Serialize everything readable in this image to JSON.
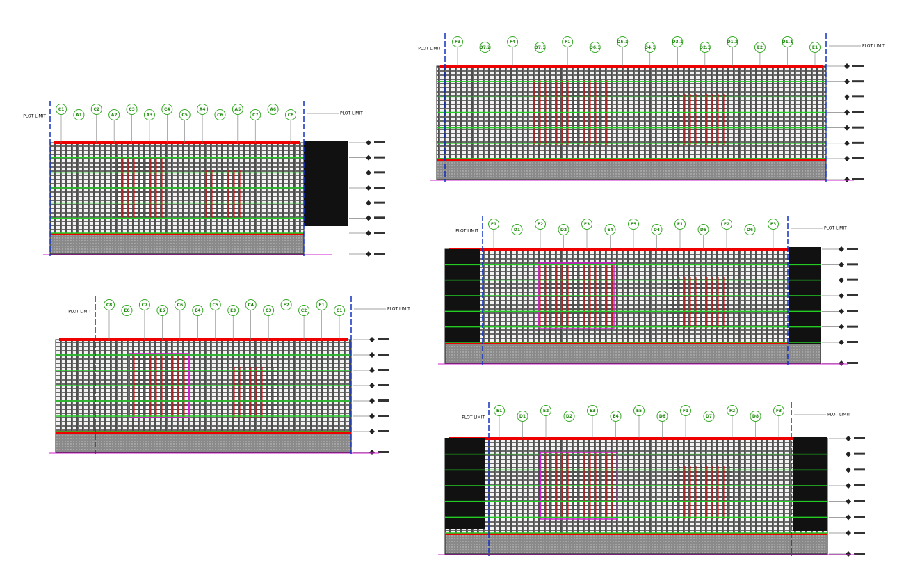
{
  "elevations": [
    {
      "plot_limit": "PLOT LIMIT",
      "grid_labels": [
        "C1",
        "A1",
        "C2",
        "A2",
        "C3",
        "A3",
        "C4",
        "C5",
        "A4",
        "C6",
        "A5",
        "C7",
        "A6",
        "C8"
      ]
    },
    {
      "plot_limit": "PLOT LIMIT",
      "grid_labels": [
        "F3",
        "D7.2",
        "F4",
        "D7.1",
        "F1",
        "D6.1",
        "D5.1",
        "D4.1",
        "D3.1",
        "D2.1",
        "D1.2",
        "E2",
        "D1.1",
        "E1"
      ]
    },
    {
      "plot_limit": "PLOT LIMIT",
      "grid_labels": [
        "C8",
        "E6",
        "C7",
        "E5",
        "C6",
        "E4",
        "C5",
        "E3",
        "C4",
        "C3",
        "E2",
        "C2",
        "E1",
        "C1"
      ]
    },
    {
      "plot_limit": "PLOT LIMIT",
      "grid_labels": [
        "E1",
        "D1",
        "E2",
        "D2",
        "E3",
        "E4",
        "E5",
        "D4",
        "F1",
        "D5",
        "F2",
        "D6",
        "F3"
      ]
    },
    {
      "plot_limit": "PLOT LIMIT",
      "grid_labels": [
        "E1",
        "D1",
        "E2",
        "D2",
        "E3",
        "E4",
        "E5",
        "D6",
        "F1",
        "D7",
        "F2",
        "D8",
        "F3"
      ]
    }
  ]
}
